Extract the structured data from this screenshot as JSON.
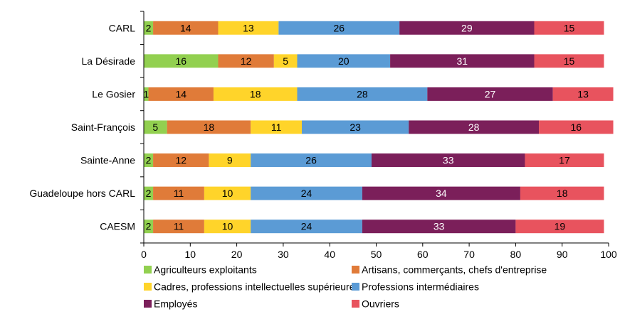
{
  "chart_data": {
    "type": "bar",
    "orientation": "horizontal",
    "stacked": true,
    "categories": [
      "CARL",
      "La Désirade",
      "Le Gosier",
      "Saint-François",
      "Sainte-Anne",
      "Guadeloupe hors CARL",
      "CAESM"
    ],
    "series": [
      {
        "name": "Agriculteurs exploitants",
        "color": "#92d050",
        "label_color": "#000000",
        "values": [
          2,
          16,
          1,
          5,
          2,
          2,
          2
        ]
      },
      {
        "name": "Artisans, commerçants, chefs d'entreprise",
        "color": "#e07b39",
        "label_color": "#000000",
        "values": [
          14,
          12,
          14,
          18,
          12,
          11,
          11
        ]
      },
      {
        "name": "Cadres, professions intellectuelles supérieures",
        "color": "#ffd42a",
        "label_color": "#000000",
        "values": [
          13,
          5,
          18,
          11,
          9,
          10,
          10
        ]
      },
      {
        "name": "Professions intermédiaires",
        "color": "#5b9bd5",
        "label_color": "#000000",
        "values": [
          26,
          20,
          28,
          23,
          26,
          24,
          24
        ]
      },
      {
        "name": "Employés",
        "color": "#7b1f5a",
        "label_color": "#ffffff",
        "values": [
          29,
          31,
          27,
          28,
          33,
          34,
          33
        ]
      },
      {
        "name": "Ouvriers",
        "color": "#e8535e",
        "label_color": "#000000",
        "values": [
          15,
          15,
          13,
          16,
          17,
          18,
          19
        ]
      }
    ],
    "xlim": [
      0,
      100
    ],
    "xticks": [
      0,
      10,
      20,
      30,
      40,
      50,
      60,
      70,
      80,
      90,
      100
    ],
    "title": "",
    "xlabel": "",
    "ylabel": "",
    "grid": false,
    "legend": "bottom"
  }
}
